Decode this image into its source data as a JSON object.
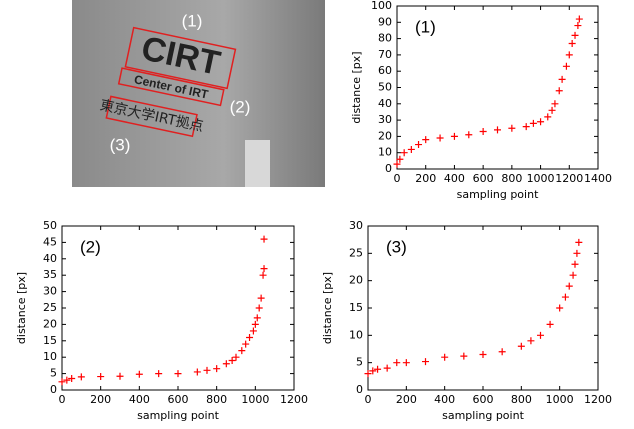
{
  "photo": {
    "labels": [
      "(1)",
      "(2)",
      "(3)"
    ],
    "sign": [
      "CIRT",
      "Center of IRT",
      "東京大学IRT拠点"
    ]
  },
  "chart_data": [
    {
      "type": "scatter",
      "annotation": "(1)",
      "x_label": "sampling point",
      "y_label": "distance [px]",
      "color": "#ff0000",
      "x": [
        0,
        20,
        50,
        100,
        150,
        200,
        300,
        400,
        500,
        600,
        700,
        800,
        900,
        950,
        1000,
        1050,
        1080,
        1100,
        1130,
        1150,
        1180,
        1200,
        1220,
        1240,
        1260,
        1270
      ],
      "values": [
        3,
        6,
        10,
        12,
        15,
        18,
        19,
        20,
        21,
        23,
        24,
        25,
        26,
        28,
        29,
        32,
        36,
        40,
        48,
        55,
        63,
        70,
        77,
        82,
        88,
        92
      ],
      "xlim": [
        0,
        1400
      ],
      "xticks": [
        0,
        200,
        400,
        600,
        800,
        1000,
        1200,
        1400
      ],
      "ylim": [
        0,
        100
      ],
      "yticks": [
        0,
        10,
        20,
        30,
        40,
        50,
        60,
        70,
        80,
        90,
        100
      ]
    },
    {
      "type": "scatter",
      "annotation": "(2)",
      "x_label": "sampling point",
      "y_label": "distance [px]",
      "color": "#ff0000",
      "x": [
        0,
        25,
        50,
        100,
        200,
        300,
        400,
        500,
        600,
        700,
        750,
        800,
        850,
        880,
        900,
        930,
        950,
        970,
        990,
        1000,
        1010,
        1020,
        1030,
        1040,
        1045,
        1045
      ],
      "values": [
        2.5,
        3,
        3.5,
        4,
        4.1,
        4.2,
        4.8,
        5,
        5,
        5.5,
        6,
        6.5,
        8,
        9,
        10,
        12,
        14,
        16,
        18,
        20,
        22,
        25,
        28,
        35,
        37,
        46
      ],
      "xlim": [
        0,
        1200
      ],
      "xticks": [
        0,
        200,
        400,
        600,
        800,
        1000,
        1200
      ],
      "ylim": [
        0,
        50
      ],
      "yticks": [
        0,
        5,
        10,
        15,
        20,
        25,
        30,
        35,
        40,
        45,
        50
      ]
    },
    {
      "type": "scatter",
      "annotation": "(3)",
      "x_label": "sampling point",
      "y_label": "distance [px]",
      "color": "#ff0000",
      "x": [
        0,
        25,
        50,
        100,
        150,
        200,
        300,
        400,
        500,
        600,
        700,
        800,
        850,
        900,
        950,
        1000,
        1030,
        1050,
        1070,
        1080,
        1090,
        1100
      ],
      "values": [
        3,
        3.5,
        3.8,
        4,
        5,
        5,
        5.2,
        6,
        6.2,
        6.5,
        7,
        8,
        9,
        10,
        12,
        15,
        17,
        19,
        21,
        23,
        25,
        27
      ],
      "xlim": [
        0,
        1200
      ],
      "xticks": [
        0,
        200,
        400,
        600,
        800,
        1000,
        1200
      ],
      "ylim": [
        0,
        30
      ],
      "yticks": [
        0,
        5,
        10,
        15,
        20,
        25,
        30
      ]
    }
  ]
}
